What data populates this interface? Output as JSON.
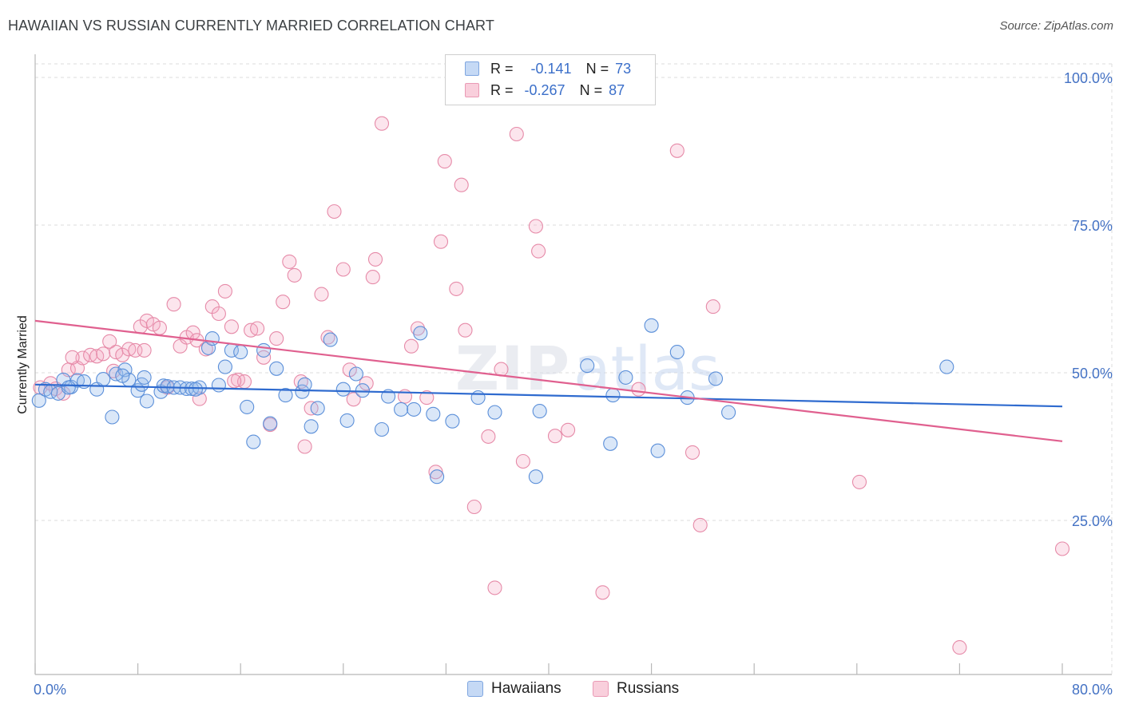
{
  "header": {
    "title": "HAWAIIAN VS RUSSIAN CURRENTLY MARRIED CORRELATION CHART",
    "source": "Source: ZipAtlas.com"
  },
  "legend": {
    "rows": [
      {
        "swatch_color": "#aac8f0",
        "r_label": "R =",
        "r_value": "-0.141",
        "n_label": "N =",
        "n_value": "73"
      },
      {
        "swatch_color": "#f5b8cc",
        "r_label": "R =",
        "r_value": "-0.267",
        "n_label": "N =",
        "n_value": "87"
      }
    ]
  },
  "bottom_legend": {
    "items": [
      {
        "label": "Hawaiians",
        "color": "#aac8f0"
      },
      {
        "label": "Russians",
        "color": "#f5b8cc"
      }
    ]
  },
  "colors": {
    "hawaiians_fill": "rgba(150,185,235,0.35)",
    "hawaiians_stroke": "#5b8fd9",
    "hawaiians_line": "#2f6bcf",
    "russians_fill": "rgba(245,170,195,0.30)",
    "russians_stroke": "#e68aa8",
    "russians_line": "#e0608f",
    "grid": "#dddddd",
    "tick_label": "#4472c4"
  },
  "chart_data": {
    "type": "scatter",
    "title": "HAWAIIAN VS RUSSIAN CURRENTLY MARRIED CORRELATION CHART",
    "xlabel": "",
    "ylabel": "Currently Married",
    "xlim": [
      0,
      80
    ],
    "ylim": [
      0,
      105
    ],
    "x_tick_labels": [
      "0.0%",
      "80.0%"
    ],
    "y_ticks": [
      25,
      50,
      75,
      100
    ],
    "y_tick_labels": [
      "25.0%",
      "50.0%",
      "75.0%",
      "100.0%"
    ],
    "grid": true,
    "legend_placement": "top-center",
    "watermark": "ZIPatlas",
    "series": [
      {
        "name": "Hawaiians",
        "r": -0.141,
        "n": 73,
        "trend": {
          "x": [
            0,
            80
          ],
          "y": [
            48.0,
            44.3
          ]
        },
        "points": [
          [
            0.3,
            45.3
          ],
          [
            0.8,
            47.2
          ],
          [
            1.2,
            46.8
          ],
          [
            1.8,
            46.5
          ],
          [
            2.2,
            48.8
          ],
          [
            2.8,
            47.6
          ],
          [
            3.3,
            48.7
          ],
          [
            3.8,
            48.5
          ],
          [
            4.8,
            47.2
          ],
          [
            5.3,
            48.9
          ],
          [
            6.0,
            42.5
          ],
          [
            6.3,
            49.8
          ],
          [
            7.0,
            50.5
          ],
          [
            7.3,
            48.8
          ],
          [
            8.0,
            47.0
          ],
          [
            8.3,
            48.0
          ],
          [
            8.5,
            49.2
          ],
          [
            8.7,
            45.2
          ],
          [
            9.8,
            46.8
          ],
          [
            10.0,
            47.8
          ],
          [
            10.3,
            47.7
          ],
          [
            10.8,
            47.5
          ],
          [
            11.3,
            47.5
          ],
          [
            11.8,
            47.3
          ],
          [
            12.2,
            47.3
          ],
          [
            12.8,
            47.5
          ],
          [
            13.5,
            54.2
          ],
          [
            13.8,
            55.8
          ],
          [
            14.3,
            47.9
          ],
          [
            14.8,
            51.0
          ],
          [
            15.3,
            53.8
          ],
          [
            16.0,
            53.5
          ],
          [
            16.5,
            44.2
          ],
          [
            17.0,
            38.3
          ],
          [
            17.8,
            53.8
          ],
          [
            18.3,
            41.4
          ],
          [
            18.8,
            50.7
          ],
          [
            19.5,
            46.2
          ],
          [
            20.8,
            46.8
          ],
          [
            21.5,
            40.9
          ],
          [
            22.0,
            44.0
          ],
          [
            23.0,
            55.6
          ],
          [
            24.0,
            47.2
          ],
          [
            24.3,
            41.9
          ],
          [
            25.0,
            49.8
          ],
          [
            25.5,
            47.0
          ],
          [
            27.0,
            40.4
          ],
          [
            27.5,
            46.0
          ],
          [
            28.5,
            43.8
          ],
          [
            29.5,
            43.8
          ],
          [
            30.0,
            56.7
          ],
          [
            31.0,
            43.0
          ],
          [
            31.3,
            32.4
          ],
          [
            32.5,
            41.8
          ],
          [
            34.5,
            45.8
          ],
          [
            35.8,
            43.3
          ],
          [
            39.0,
            32.4
          ],
          [
            39.3,
            43.5
          ],
          [
            43.0,
            51.2
          ],
          [
            44.8,
            38.0
          ],
          [
            45.0,
            46.2
          ],
          [
            46.0,
            49.2
          ],
          [
            48.0,
            58.0
          ],
          [
            48.5,
            36.8
          ],
          [
            50.0,
            53.5
          ],
          [
            50.8,
            45.8
          ],
          [
            53.0,
            49.0
          ],
          [
            54.0,
            43.3
          ],
          [
            71.0,
            51.0
          ],
          [
            2.6,
            47.5
          ],
          [
            12.5,
            47.2
          ],
          [
            21.0,
            48.0
          ],
          [
            6.8,
            49.5
          ]
        ]
      },
      {
        "name": "Russians",
        "r": -0.267,
        "n": 87,
        "trend": {
          "x": [
            0,
            80
          ],
          "y": [
            58.8,
            38.4
          ]
        },
        "points": [
          [
            0.4,
            47.5
          ],
          [
            1.2,
            48.2
          ],
          [
            1.6,
            47.3
          ],
          [
            2.2,
            46.5
          ],
          [
            2.6,
            50.5
          ],
          [
            3.3,
            50.8
          ],
          [
            3.7,
            52.5
          ],
          [
            4.3,
            53.0
          ],
          [
            4.8,
            52.8
          ],
          [
            5.3,
            53.2
          ],
          [
            5.8,
            55.3
          ],
          [
            6.3,
            53.5
          ],
          [
            6.8,
            53.0
          ],
          [
            7.3,
            54.0
          ],
          [
            7.8,
            53.8
          ],
          [
            8.2,
            57.8
          ],
          [
            8.7,
            58.8
          ],
          [
            9.2,
            58.2
          ],
          [
            9.7,
            57.6
          ],
          [
            10.3,
            47.5
          ],
          [
            10.8,
            61.6
          ],
          [
            11.3,
            54.5
          ],
          [
            11.8,
            56.0
          ],
          [
            12.3,
            56.8
          ],
          [
            12.6,
            55.5
          ],
          [
            12.8,
            45.6
          ],
          [
            13.3,
            54.0
          ],
          [
            13.8,
            61.2
          ],
          [
            14.3,
            60.0
          ],
          [
            14.8,
            63.8
          ],
          [
            15.3,
            57.8
          ],
          [
            15.8,
            48.8
          ],
          [
            16.3,
            48.5
          ],
          [
            16.8,
            57.2
          ],
          [
            17.3,
            57.5
          ],
          [
            17.8,
            52.6
          ],
          [
            18.3,
            41.2
          ],
          [
            18.8,
            55.8
          ],
          [
            19.3,
            62.0
          ],
          [
            19.8,
            68.8
          ],
          [
            20.2,
            66.5
          ],
          [
            20.7,
            48.5
          ],
          [
            21.0,
            37.5
          ],
          [
            21.5,
            44.0
          ],
          [
            22.3,
            63.3
          ],
          [
            22.8,
            56.0
          ],
          [
            23.3,
            77.3
          ],
          [
            24.0,
            67.5
          ],
          [
            24.5,
            50.5
          ],
          [
            24.8,
            45.5
          ],
          [
            25.8,
            48.2
          ],
          [
            26.3,
            66.2
          ],
          [
            26.5,
            69.2
          ],
          [
            27.0,
            92.2
          ],
          [
            28.8,
            46.0
          ],
          [
            29.3,
            54.5
          ],
          [
            29.8,
            57.5
          ],
          [
            30.5,
            45.8
          ],
          [
            31.2,
            33.2
          ],
          [
            31.6,
            72.2
          ],
          [
            31.9,
            85.8
          ],
          [
            32.8,
            64.2
          ],
          [
            33.2,
            81.8
          ],
          [
            33.5,
            57.2
          ],
          [
            34.2,
            27.3
          ],
          [
            35.3,
            39.2
          ],
          [
            35.8,
            13.6
          ],
          [
            36.3,
            50.6
          ],
          [
            37.5,
            90.4
          ],
          [
            38.0,
            35.0
          ],
          [
            39.0,
            74.8
          ],
          [
            39.2,
            70.6
          ],
          [
            40.5,
            39.3
          ],
          [
            41.5,
            40.3
          ],
          [
            44.2,
            12.8
          ],
          [
            47.0,
            47.2
          ],
          [
            50.0,
            87.6
          ],
          [
            51.2,
            36.5
          ],
          [
            51.8,
            24.2
          ],
          [
            52.8,
            61.2
          ],
          [
            64.2,
            31.5
          ],
          [
            72.0,
            3.5
          ],
          [
            80.0,
            20.2
          ],
          [
            15.5,
            48.6
          ],
          [
            8.5,
            53.8
          ],
          [
            2.9,
            52.6
          ],
          [
            6.1,
            50.3
          ]
        ]
      }
    ]
  }
}
